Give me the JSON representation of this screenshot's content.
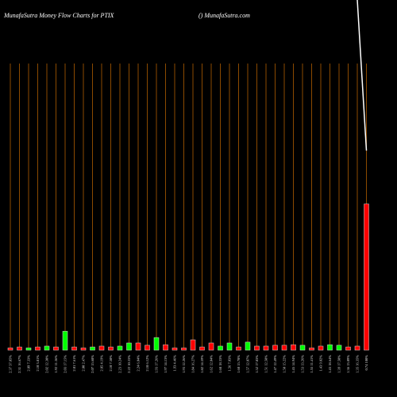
{
  "chart_data": {
    "type": "bar",
    "title": "MunafaSutra  Money Flow  Charts for PTIX",
    "subtitle": "() MunafaSutra.com",
    "categories": [
      "2.37 37.85%",
      "2.31 16.67%",
      "2.09 7.33%",
      "2.10 3.81%",
      "2.02 12.30%",
      "1.92 11.36%",
      "2.03 17.15%",
      "2.01 7.61%",
      "2.00 2.47%",
      "2.07 15.68%",
      "2.05 4.19%",
      "2.10 7.50%",
      "2.23 10.24%",
      "2.22 10.33%",
      "2.24 6.04%",
      "2.18 6.12%",
      "1.93 17.26%",
      "1.97 14.13%",
      "1.93 4.46%",
      "1.93 12.26%",
      "1.84 16.27%",
      "1.82 14.59%",
      "1.62 12.04%",
      "1.68 18.33%",
      "1.56 7.03%",
      "1.60 15.78%",
      "1.57 12.07%",
      "1.52 17.83%",
      "1.51 12.58%",
      "1.47 12.49%",
      "1.50 15.22%",
      "1.45 14.94%",
      "1.53 13.26%",
      "1.55 11.41%",
      "1.43 9.02%",
      "1.43 18.64%",
      "1.39 17.50%",
      "1.36 13.09%",
      "1.35 16.35%",
      "0.74 100%"
    ],
    "values": [
      0.8,
      1.1,
      0.8,
      1.1,
      1.4,
      1.1,
      6.6,
      1.1,
      0.8,
      1.1,
      1.4,
      1.1,
      1.4,
      2.5,
      2.5,
      1.7,
      4.4,
      1.9,
      0.8,
      0.8,
      3.6,
      1.1,
      2.5,
      1.4,
      2.5,
      1.1,
      2.8,
      1.4,
      1.4,
      1.7,
      1.7,
      1.9,
      1.7,
      0.8,
      1.4,
      1.9,
      1.7,
      1.1,
      1.4,
      51
    ],
    "colors": [
      "#ff0000",
      "#ff0000",
      "#00ff00",
      "#ff0000",
      "#00ff00",
      "#ff0000",
      "#00ff00",
      "#ff0000",
      "#ff0000",
      "#00ff00",
      "#ff0000",
      "#ff0000",
      "#00ff00",
      "#00ff00",
      "#ff0000",
      "#ff0000",
      "#00ff00",
      "#ff0000",
      "#ff0000",
      "#ff0000",
      "#ff0000",
      "#ff0000",
      "#ff0000",
      "#00ff00",
      "#00ff00",
      "#ff0000",
      "#00ff00",
      "#ff0000",
      "#ff0000",
      "#ff0000",
      "#ff0000",
      "#ff0000",
      "#00ff00",
      "#ff0000",
      "#ff0000",
      "#00ff00",
      "#00ff00",
      "#ff0000",
      "#ff0000",
      "#ff0000"
    ],
    "ylim": [
      0,
      100
    ],
    "price": {
      "color": "#ffffff",
      "axis": "y2",
      "values": [
        null,
        null,
        null,
        null,
        null,
        null,
        null,
        null,
        null,
        null,
        null,
        null,
        null,
        null,
        null,
        null,
        null,
        null,
        null,
        null,
        null,
        null,
        null,
        null,
        null,
        null,
        null,
        null,
        null,
        null,
        null,
        null,
        null,
        null,
        null,
        null,
        null,
        null,
        100,
        57
      ]
    },
    "y2lim": [
      0,
      100
    ],
    "grid": true,
    "grid_color": "#8b4a00"
  }
}
